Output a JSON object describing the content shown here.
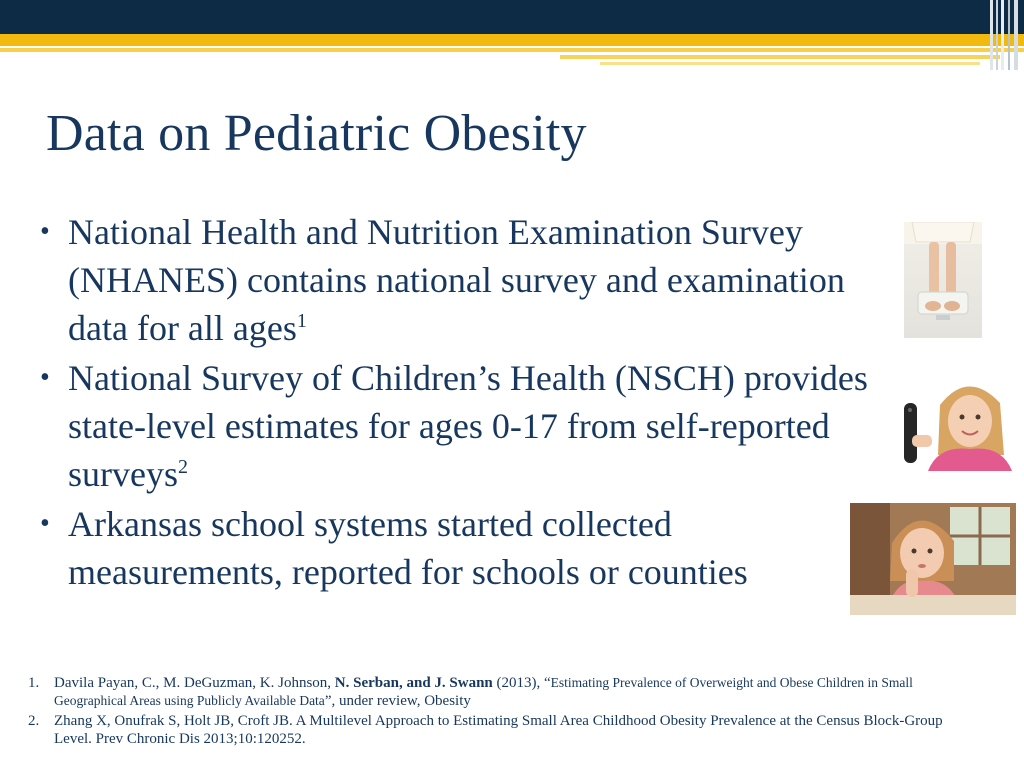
{
  "slide": {
    "title": "Data on Pediatric Obesity",
    "bullets": [
      {
        "text": "National Health and Nutrition Examination Survey (NHANES) contains national survey and examination data for all ages",
        "sup": "1"
      },
      {
        "text": "National Survey of Children’s Health (NSCH) provides state-level estimates for ages 0-17 from self-reported surveys",
        "sup": "2"
      },
      {
        "text": "Arkansas school systems started collected measurements, reported for schools or counties",
        "sup": ""
      }
    ],
    "bullet_glyph": "•"
  },
  "images": [
    {
      "name": "feet-on-scale-photo"
    },
    {
      "name": "girl-with-phone-photo"
    },
    {
      "name": "girl-at-table-photo"
    }
  ],
  "references": [
    {
      "num": "1.",
      "part1": "Davila Payan, C., M. DeGuzman, K. Johnson, ",
      "bold": "N. Serban, and J. Swann",
      "part2": " (2013), “",
      "small": "Estimating Prevalence of Overweight and Obese Children in Small Geographical Areas using Publicly Available Data",
      "part3": "”, under  review, Obesity"
    },
    {
      "num": "2.",
      "text": "Zhang X, Onufrak S, Holt JB, Croft JB. A Multilevel Approach to Estimating Small Area Childhood Obesity Prevalence at the Census Block-Group Level. Prev Chronic Dis 2013;10:120252."
    }
  ],
  "colors": {
    "navy": "#0d2b45",
    "gold": "#f2b90f",
    "text": "#17375e"
  }
}
